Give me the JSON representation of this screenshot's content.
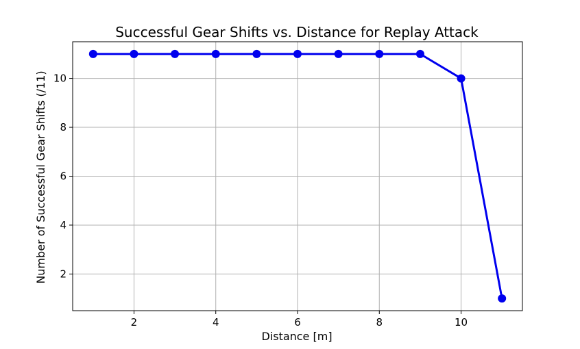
{
  "chart_data": {
    "type": "line",
    "title": "Successful Gear Shifts vs. Distance for Replay Attack",
    "xlabel": "Distance [m]",
    "ylabel": "Number of Successful Gear Shifts (/11)",
    "xlim": [
      0.5,
      11.5
    ],
    "ylim": [
      0.5,
      11.5
    ],
    "xticks": [
      2,
      4,
      6,
      8,
      10
    ],
    "yticks": [
      2,
      4,
      6,
      8,
      10
    ],
    "grid": true,
    "series": [
      {
        "color": "#0000ee",
        "marker": "circle",
        "x": [
          1,
          2,
          3,
          4,
          5,
          6,
          7,
          8,
          9,
          10,
          11
        ],
        "y": [
          11,
          11,
          11,
          11,
          11,
          11,
          11,
          11,
          11,
          10,
          1
        ]
      }
    ]
  }
}
